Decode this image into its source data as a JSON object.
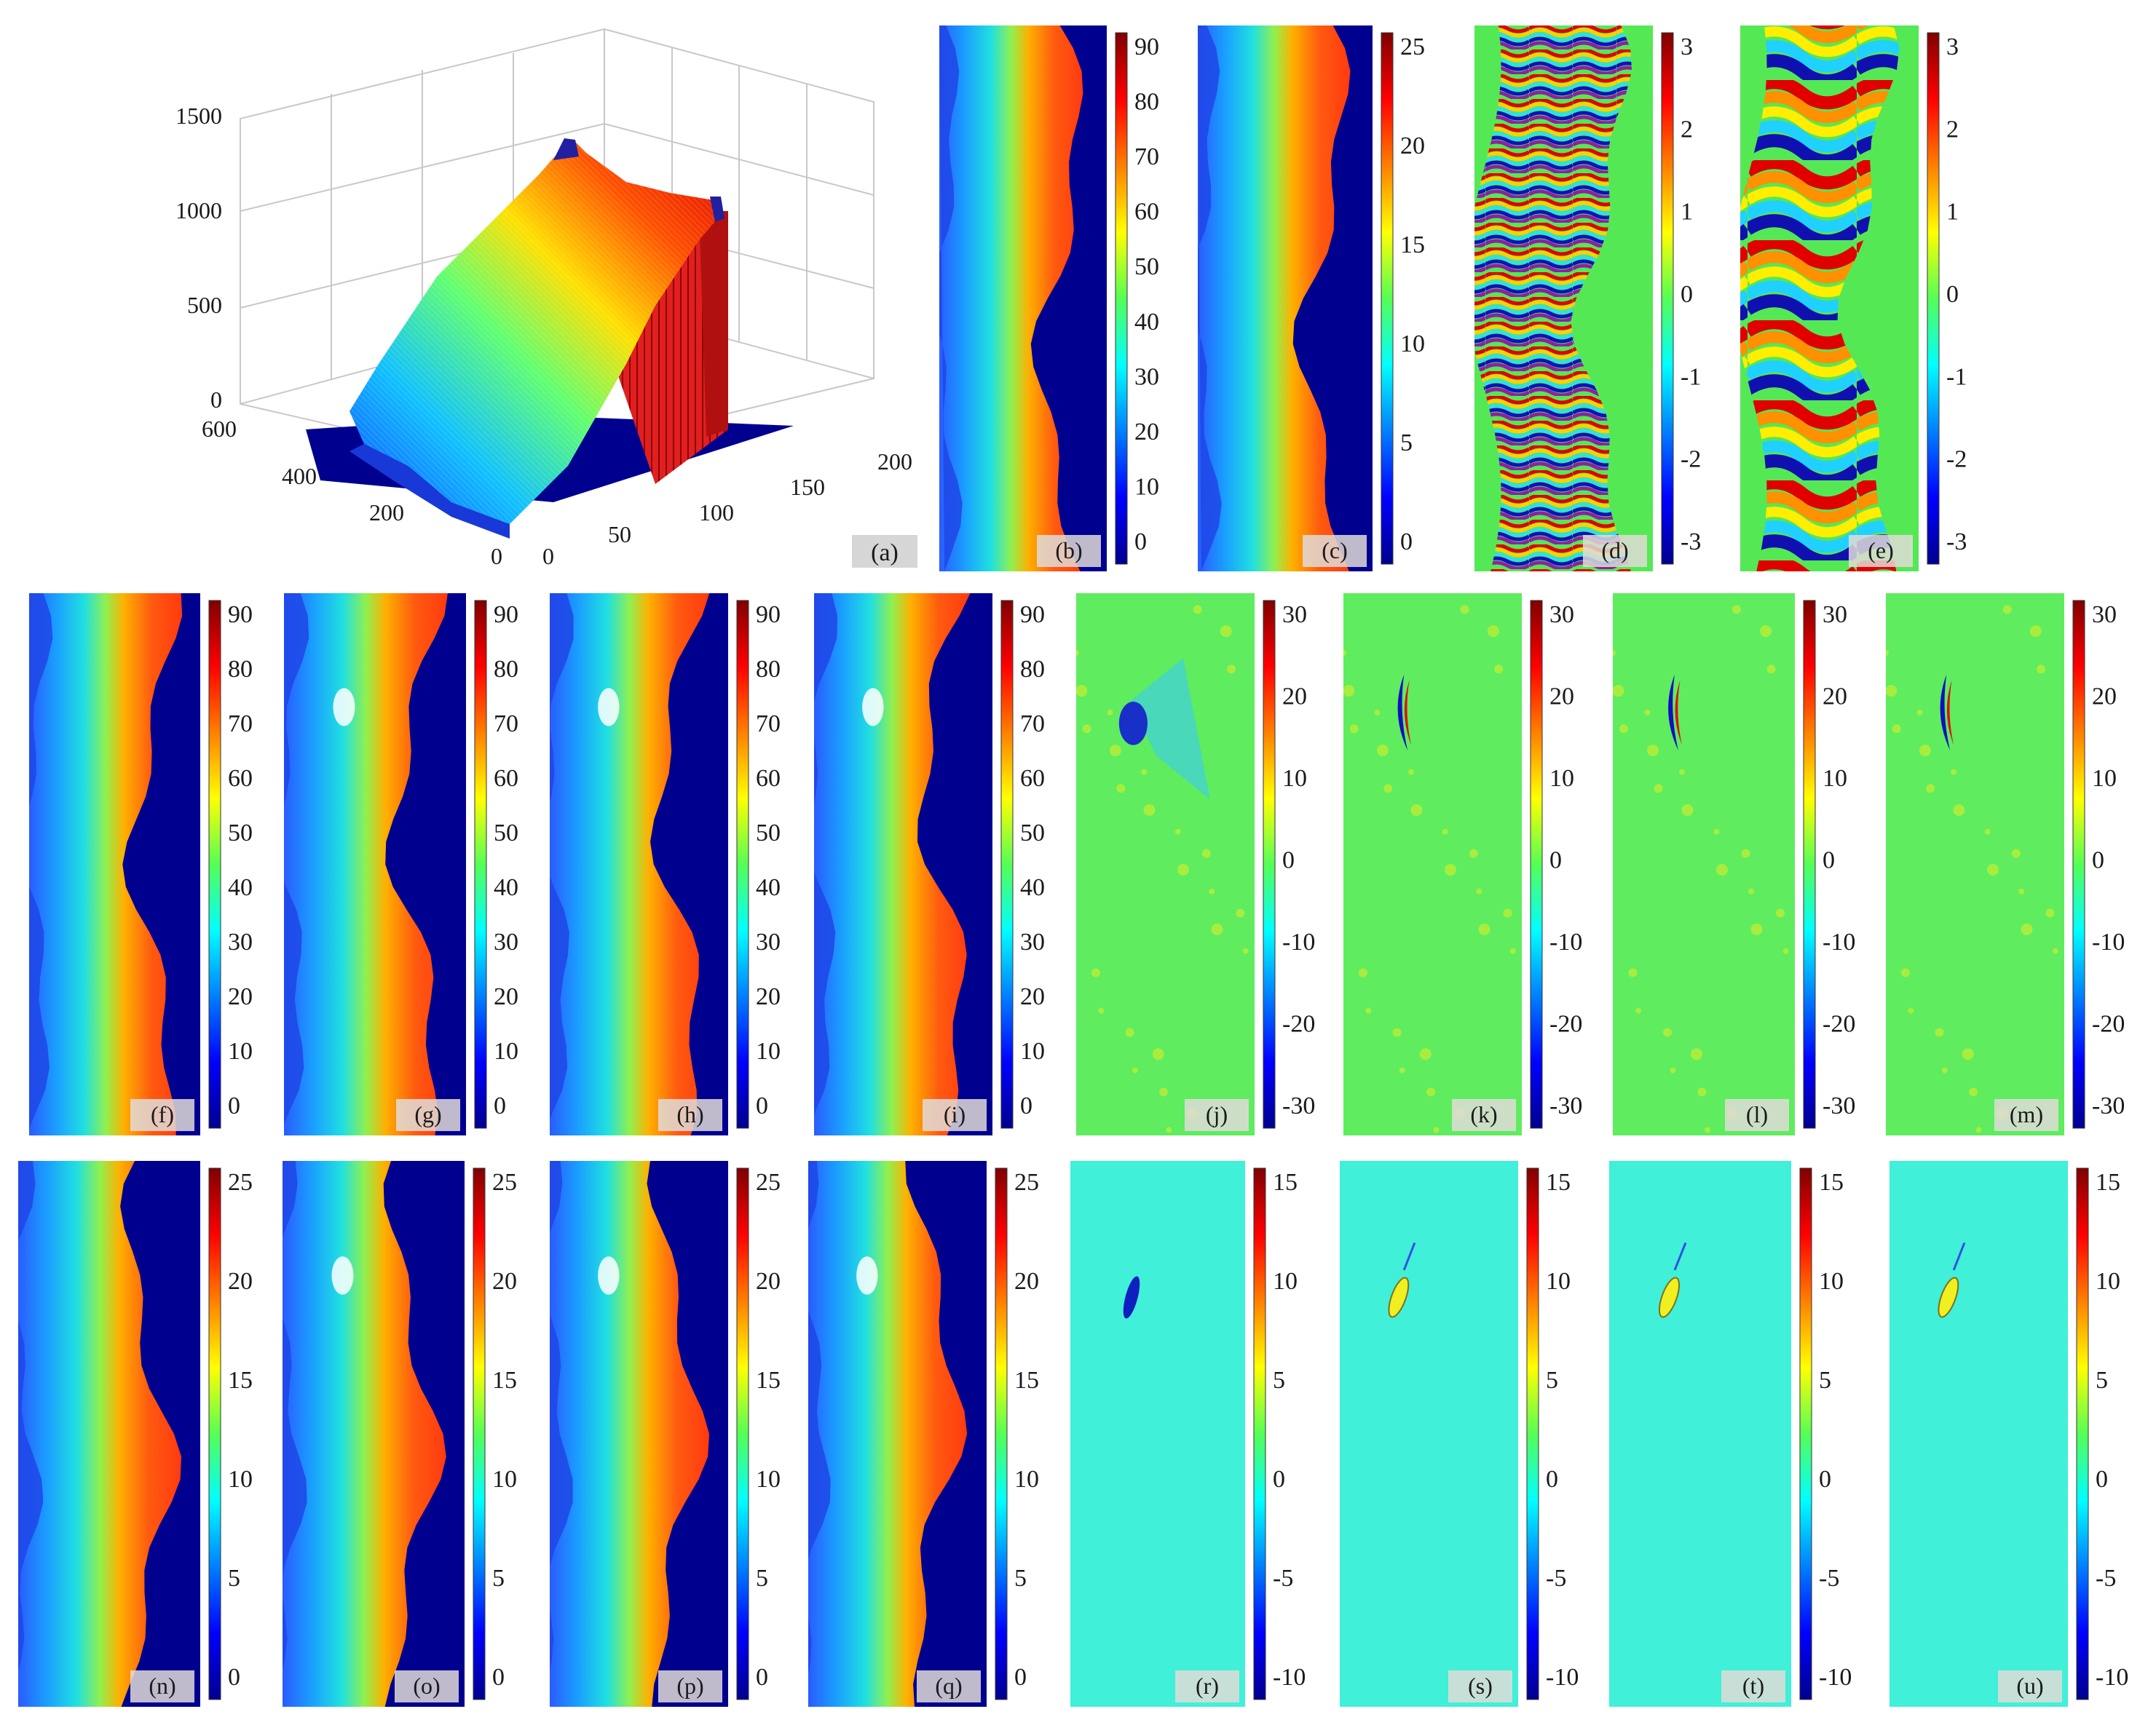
{
  "figure": {
    "panel_a": {
      "label": "(a)",
      "z_ticks": [
        "0",
        "500",
        "1000",
        "1500"
      ],
      "y_ticks": [
        "0",
        "200",
        "400",
        "600"
      ],
      "x_ticks": [
        "0",
        "50",
        "100",
        "150",
        "200"
      ]
    },
    "panels": [
      {
        "id": "b",
        "label": "(b)",
        "kind": "elev",
        "scale": "0-90",
        "ticks": [
          "90",
          "80",
          "70",
          "60",
          "50",
          "40",
          "30",
          "20",
          "10",
          "0"
        ],
        "defect": "none"
      },
      {
        "id": "c",
        "label": "(c)",
        "kind": "elev",
        "scale": "0-25",
        "ticks": [
          "25",
          "20",
          "15",
          "10",
          "5",
          "0"
        ],
        "defect": "none"
      },
      {
        "id": "d",
        "label": "(d)",
        "kind": "fringe_dense",
        "scale": "-3-3",
        "ticks": [
          "3",
          "2",
          "1",
          "0",
          "-1",
          "-2",
          "-3"
        ],
        "defect": "none"
      },
      {
        "id": "e",
        "label": "(e)",
        "kind": "fringe_coarse",
        "scale": "-3-3",
        "ticks": [
          "3",
          "2",
          "1",
          "0",
          "-1",
          "-2",
          "-3"
        ],
        "defect": "none"
      },
      {
        "id": "f",
        "label": "(f)",
        "kind": "elev",
        "scale": "0-90",
        "ticks": [
          "90",
          "80",
          "70",
          "60",
          "50",
          "40",
          "30",
          "20",
          "10",
          "0"
        ],
        "defect": "none"
      },
      {
        "id": "g",
        "label": "(g)",
        "kind": "elev",
        "scale": "0-90",
        "ticks": [
          "90",
          "80",
          "70",
          "60",
          "50",
          "40",
          "30",
          "20",
          "10",
          "0"
        ],
        "defect": "dent"
      },
      {
        "id": "h",
        "label": "(h)",
        "kind": "elev",
        "scale": "0-90",
        "ticks": [
          "90",
          "80",
          "70",
          "60",
          "50",
          "40",
          "30",
          "20",
          "10",
          "0"
        ],
        "defect": "dent"
      },
      {
        "id": "i",
        "label": "(i)",
        "kind": "elev",
        "scale": "0-90",
        "ticks": [
          "90",
          "80",
          "70",
          "60",
          "50",
          "40",
          "30",
          "20",
          "10",
          "0"
        ],
        "defect": "dent"
      },
      {
        "id": "j",
        "label": "(j)",
        "kind": "error",
        "scale": "-30-30",
        "ticks": [
          "30",
          "20",
          "10",
          "0",
          "-10",
          "-20",
          "-30"
        ],
        "defect": "blob_blue"
      },
      {
        "id": "k",
        "label": "(k)",
        "kind": "error",
        "scale": "-30-30",
        "ticks": [
          "30",
          "20",
          "10",
          "0",
          "-10",
          "-20",
          "-30"
        ],
        "defect": "crescent"
      },
      {
        "id": "l",
        "label": "(l)",
        "kind": "error",
        "scale": "-30-30",
        "ticks": [
          "30",
          "20",
          "10",
          "0",
          "-10",
          "-20",
          "-30"
        ],
        "defect": "crescent"
      },
      {
        "id": "m",
        "label": "(m)",
        "kind": "error",
        "scale": "-30-30",
        "ticks": [
          "30",
          "20",
          "10",
          "0",
          "-10",
          "-20",
          "-30"
        ],
        "defect": "crescent"
      },
      {
        "id": "n",
        "label": "(n)",
        "kind": "elev",
        "scale": "0-25",
        "ticks": [
          "25",
          "20",
          "15",
          "10",
          "5",
          "0"
        ],
        "defect": "none"
      },
      {
        "id": "o",
        "label": "(o)",
        "kind": "elev",
        "scale": "0-25",
        "ticks": [
          "25",
          "20",
          "15",
          "10",
          "5",
          "0"
        ],
        "defect": "dent"
      },
      {
        "id": "p",
        "label": "(p)",
        "kind": "elev",
        "scale": "0-25",
        "ticks": [
          "25",
          "20",
          "15",
          "10",
          "5",
          "0"
        ],
        "defect": "dent"
      },
      {
        "id": "q",
        "label": "(q)",
        "kind": "elev",
        "scale": "0-25",
        "ticks": [
          "25",
          "20",
          "15",
          "10",
          "5",
          "0"
        ],
        "defect": "dent"
      },
      {
        "id": "r",
        "label": "(r)",
        "kind": "error2",
        "scale": "-10-15",
        "ticks": [
          "15",
          "10",
          "5",
          "0",
          "-5",
          "-10"
        ],
        "defect": "streak_blue"
      },
      {
        "id": "s",
        "label": "(s)",
        "kind": "error2",
        "scale": "-10-15",
        "ticks": [
          "15",
          "10",
          "5",
          "0",
          "-5",
          "-10"
        ],
        "defect": "streak_yellow"
      },
      {
        "id": "t",
        "label": "(t)",
        "kind": "error2",
        "scale": "-10-15",
        "ticks": [
          "15",
          "10",
          "5",
          "0",
          "-5",
          "-10"
        ],
        "defect": "streak_yellow"
      },
      {
        "id": "u",
        "label": "(u)",
        "kind": "error2",
        "scale": "-10-15",
        "ticks": [
          "15",
          "10",
          "5",
          "0",
          "-5",
          "-10"
        ],
        "defect": "streak_yellow"
      }
    ]
  }
}
